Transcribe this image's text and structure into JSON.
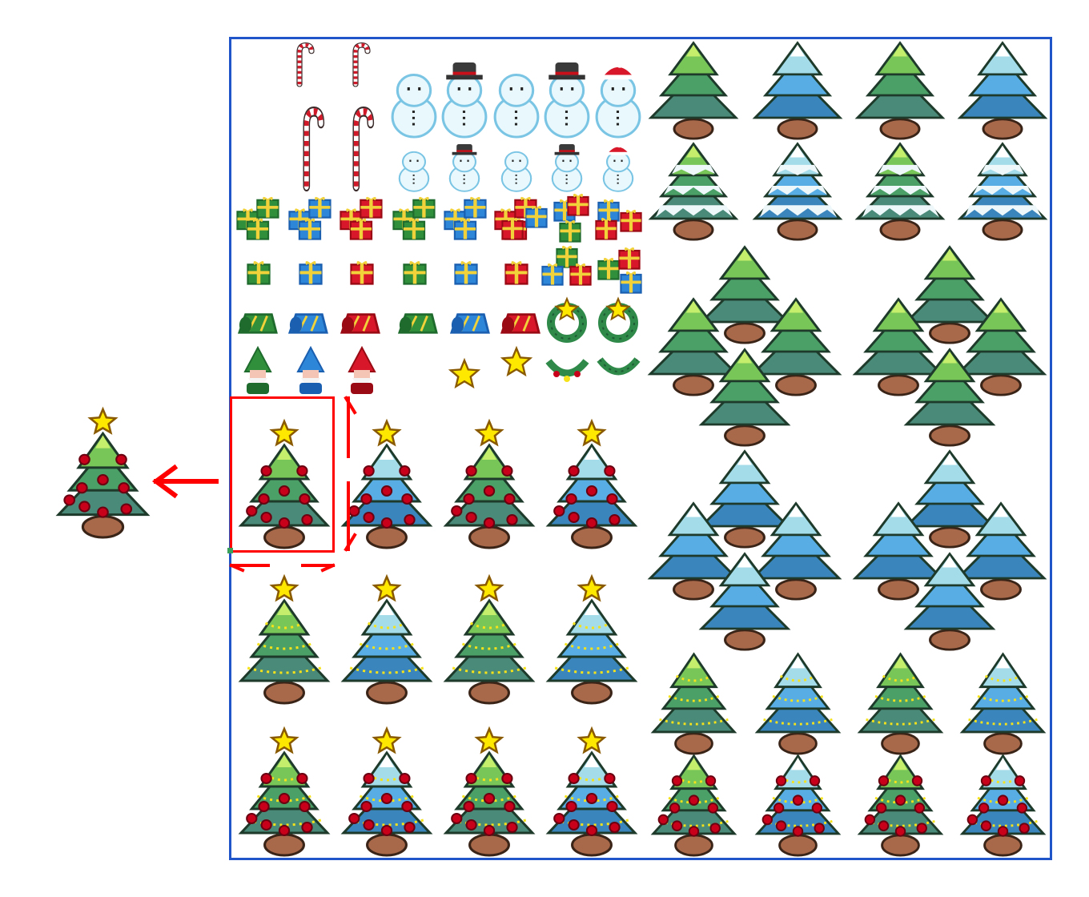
{
  "canvas": {
    "border_color": "#1f55c8",
    "selection_color": "#ff0000"
  },
  "palette": {
    "green": [
      "#4a8a78",
      "#4aa066",
      "#78c658",
      "#c4ee6c"
    ],
    "blue": [
      "#3a86bc",
      "#58aee4",
      "#a4dcea",
      "#ffffff"
    ],
    "ornament": "#c8001a",
    "light": "#f5e21a",
    "trunk": "#a8684a",
    "star": "#ffe800"
  },
  "sprites": {
    "candy_canes": [
      "candy-cane-small",
      "candy-cane-small",
      "candy-cane-large",
      "candy-cane-large"
    ],
    "snowmen_hats": [
      "none",
      "top-hat",
      "none",
      "top-hat",
      "santa-hat"
    ],
    "gift_colors": [
      "green",
      "blue",
      "red",
      "green",
      "blue",
      "red"
    ],
    "gnome_colors": [
      "green",
      "blue",
      "red"
    ],
    "tree_colors": [
      "green",
      "blue",
      "green",
      "blue"
    ],
    "selected_sprite": "green-tree-star-ornaments"
  },
  "preview": {
    "sprite": "green-tree-star-ornaments"
  }
}
